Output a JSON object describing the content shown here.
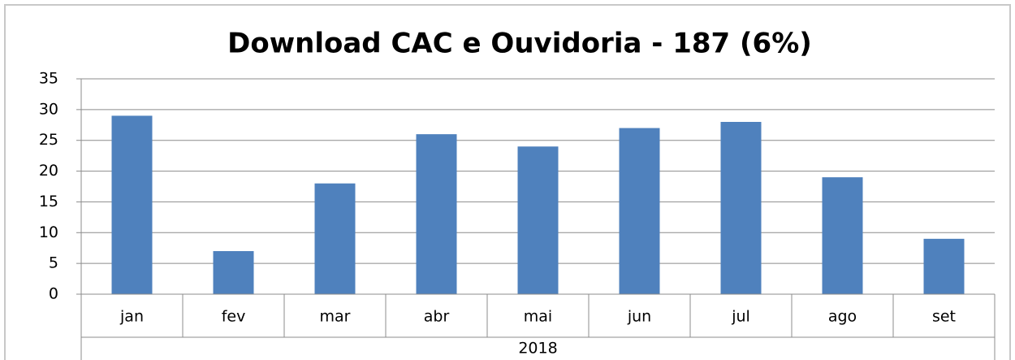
{
  "chart_data": {
    "type": "bar",
    "title": "Download CAC e Ouvidoria - 187 (6%)",
    "categories": [
      "jan",
      "fev",
      "mar",
      "abr",
      "mai",
      "jun",
      "jul",
      "ago",
      "set"
    ],
    "group_label": "2018",
    "values": [
      29,
      7,
      18,
      26,
      24,
      27,
      28,
      19,
      9
    ],
    "color": "#4f81bd",
    "ylim": [
      0,
      35
    ],
    "yticks": [
      0,
      5,
      10,
      15,
      20,
      25,
      30,
      35
    ],
    "grid": true
  }
}
